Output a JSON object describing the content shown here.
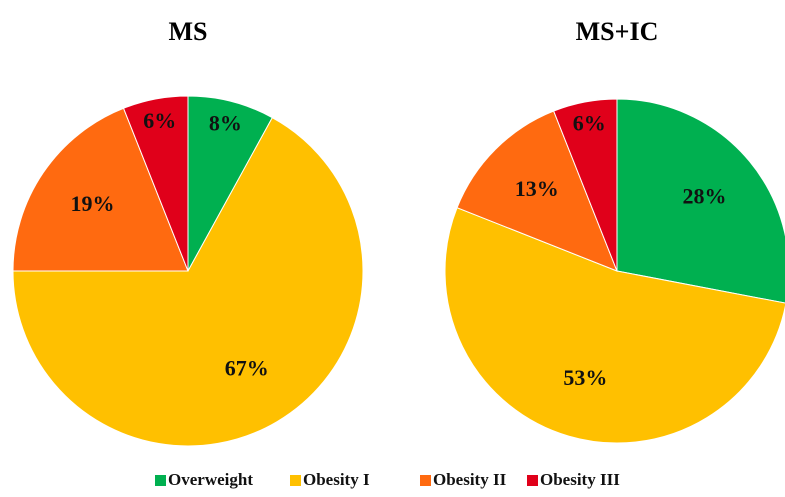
{
  "chart_data": [
    {
      "type": "pie",
      "title": "MS",
      "categories": [
        "Overweight",
        "Obesity I",
        "Obesity II",
        "Obesity III"
      ],
      "values": [
        8,
        67,
        19,
        6
      ],
      "value_labels": [
        "8%",
        "67%",
        "19%",
        "6%"
      ],
      "colors": [
        "#00b050",
        "#ffc000",
        "#ff6a10",
        "#e0001a"
      ],
      "legend": "bottom"
    },
    {
      "type": "pie",
      "title": "MS+IC",
      "categories": [
        "Overweight",
        "Obesity I",
        "Obesity II",
        "Obesity III"
      ],
      "values": [
        28,
        53,
        13,
        6
      ],
      "value_labels": [
        "28%",
        "53%",
        "13%",
        "6%"
      ],
      "colors": [
        "#00b050",
        "#ffc000",
        "#ff6a10",
        "#e0001a"
      ]
    }
  ]
}
